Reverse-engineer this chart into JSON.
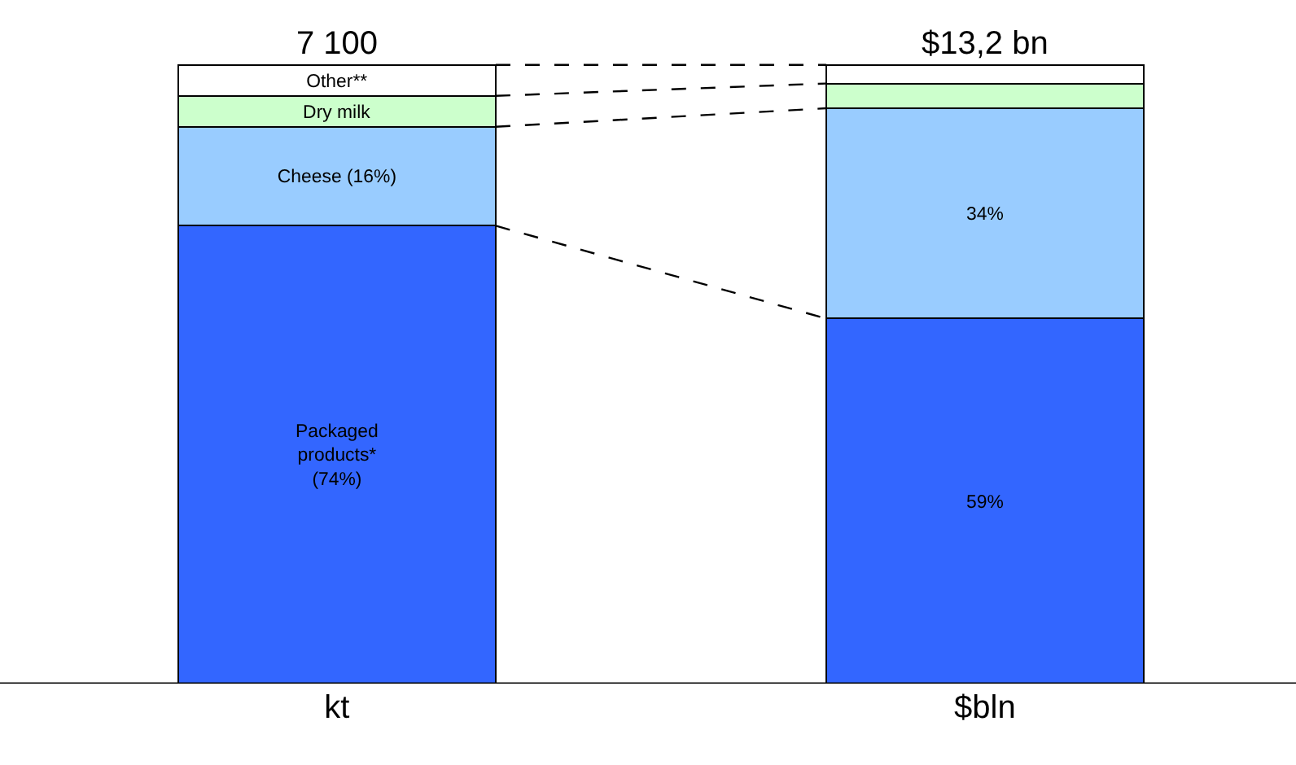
{
  "chart_data": {
    "type": "bar",
    "stacked": true,
    "categories": [
      "kt",
      "$bln"
    ],
    "series": [
      {
        "color": "#3366ff",
        "values": [
          74,
          59
        ],
        "value_labels": [
          "Packaged\nproducts*\n(74%)",
          "59%"
        ]
      },
      {
        "color": "#99ccff",
        "values": [
          16,
          34
        ],
        "value_labels": [
          "Cheese (16%)",
          "34%"
        ]
      },
      {
        "color": "#ccffcc",
        "values": [
          5,
          4
        ],
        "value_labels": [
          "Dry milk",
          null
        ]
      },
      {
        "color": "#ffffff",
        "values": [
          5,
          3
        ],
        "value_labels": [
          "Other**",
          null
        ]
      }
    ],
    "annotations": [
      {
        "text": "7 100",
        "x": "kt",
        "y": 100
      },
      {
        "text": "$13,2 bn",
        "x": "$bln",
        "y": 100
      }
    ]
  }
}
